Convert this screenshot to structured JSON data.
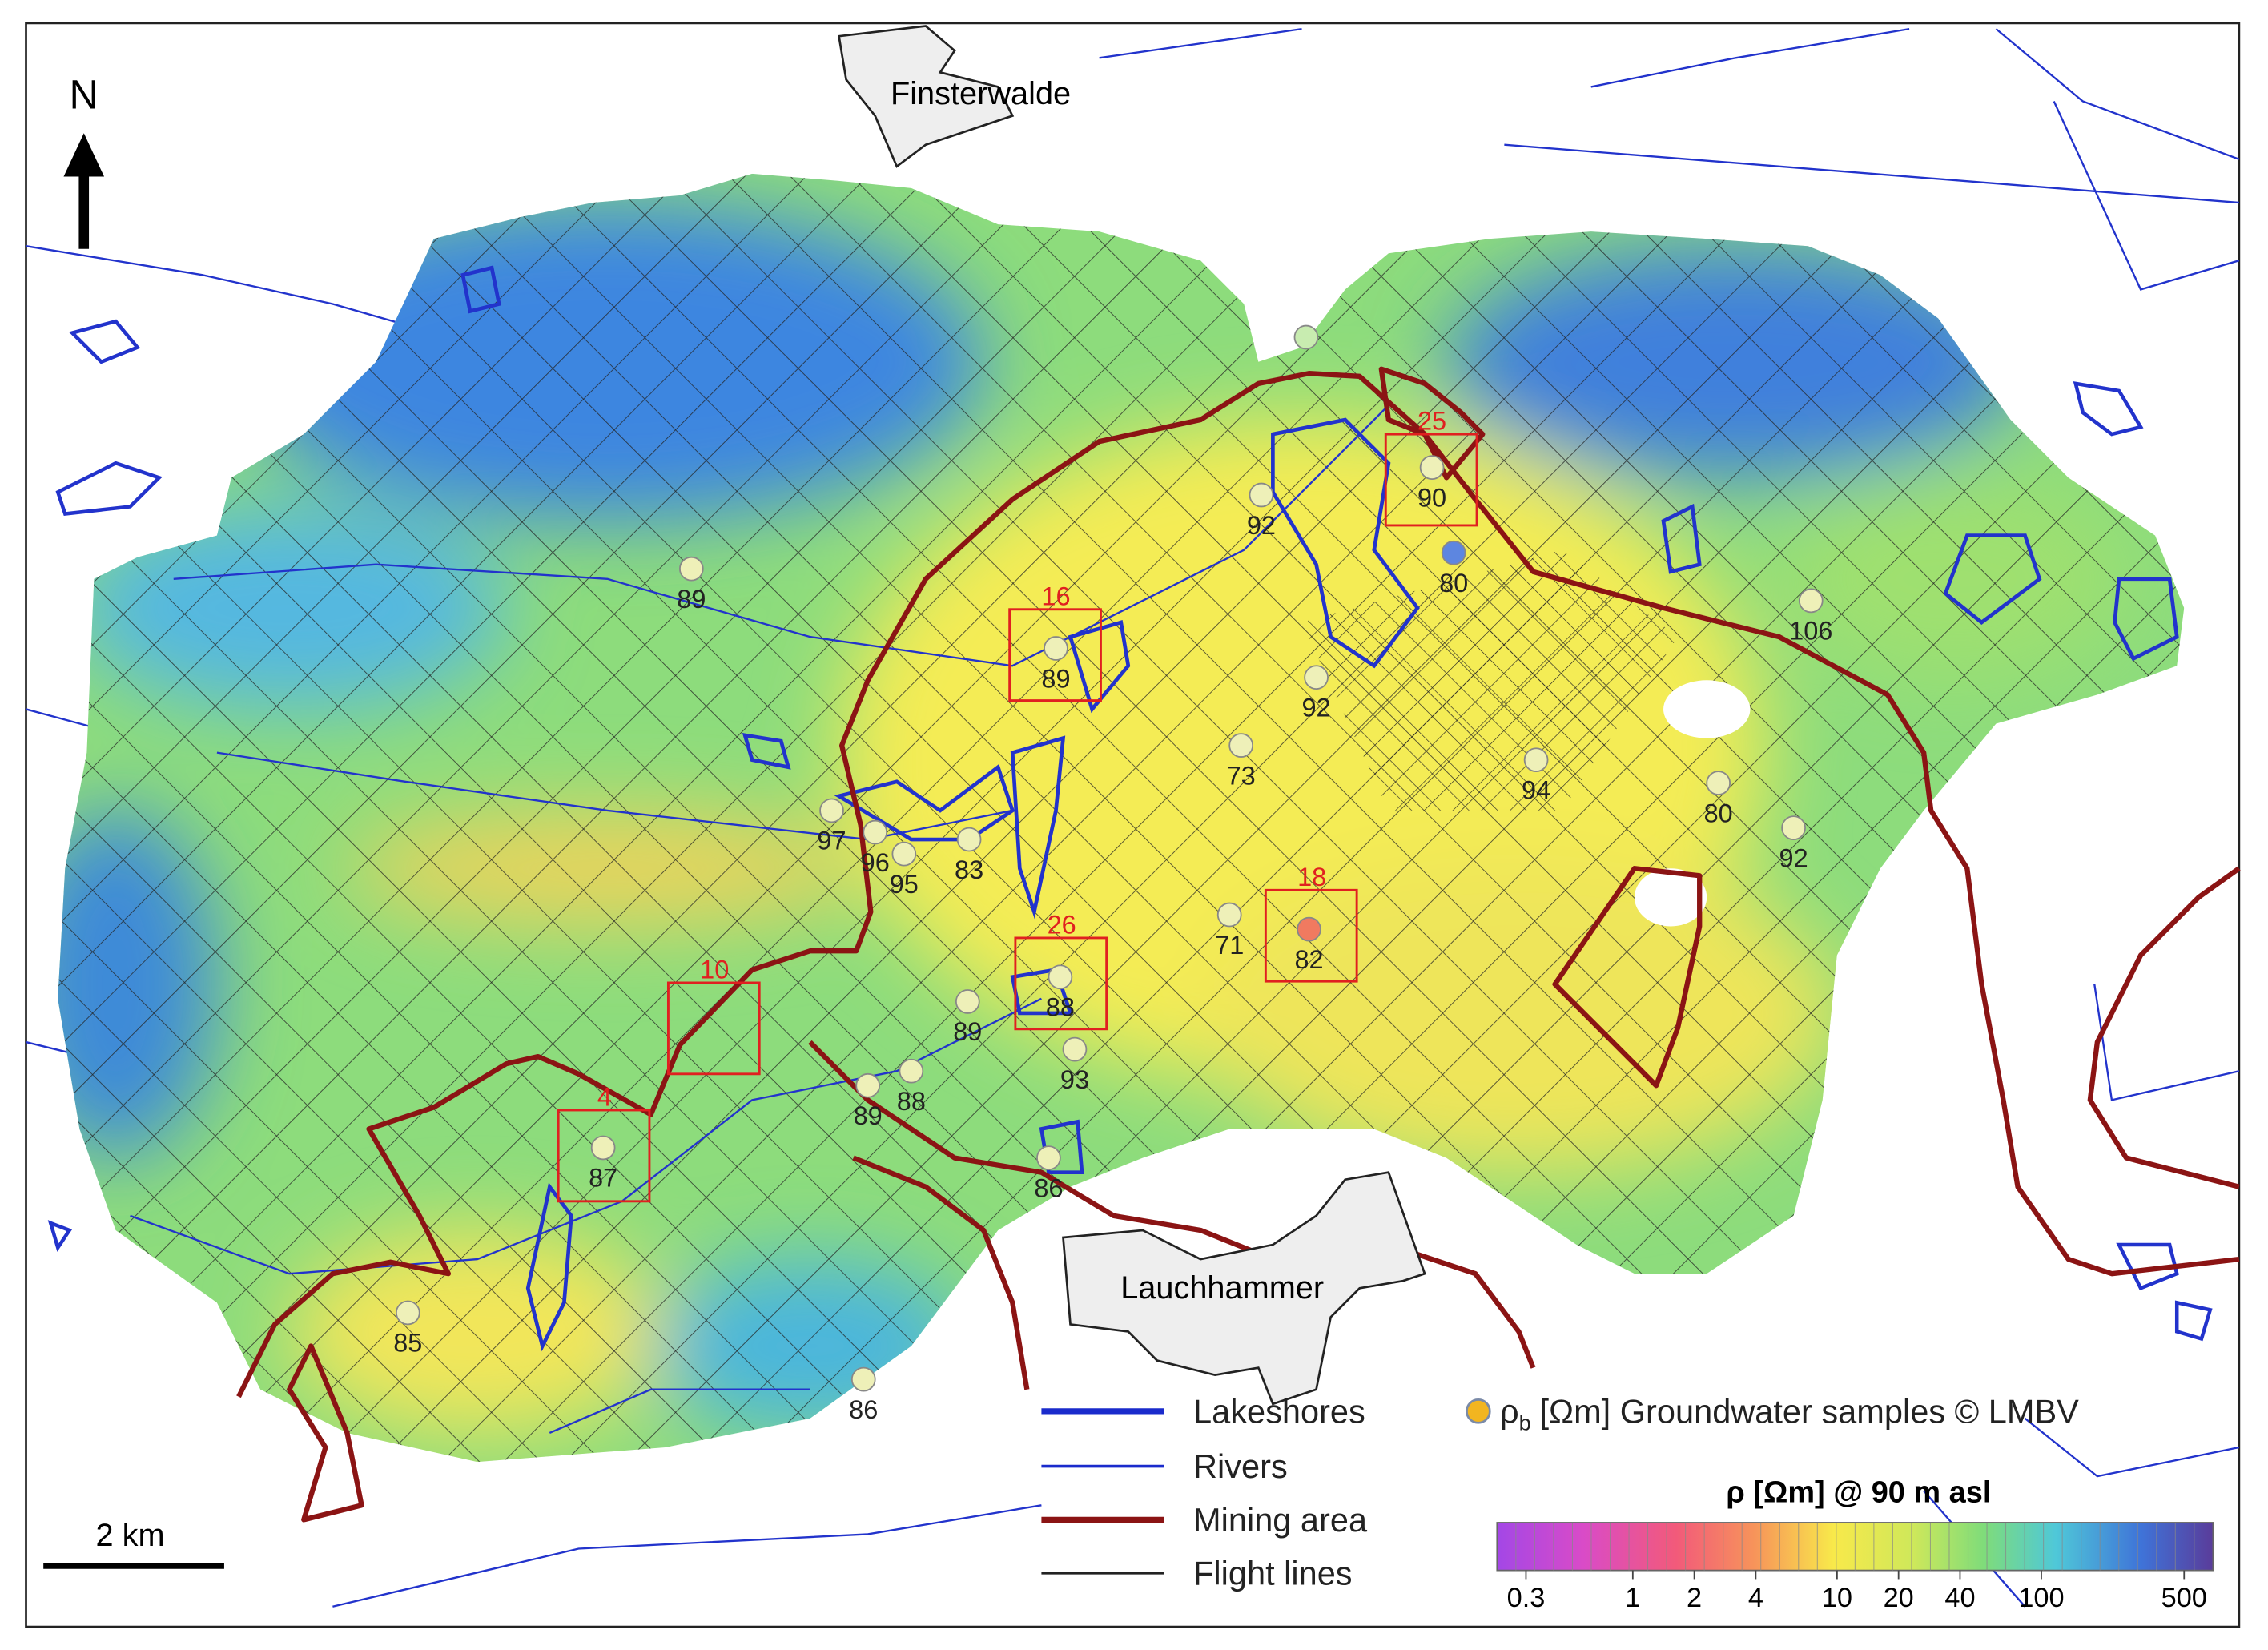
{
  "north_label": "N",
  "towns": [
    {
      "name": "Finsterwalde"
    },
    {
      "name": "Lauchhammer"
    }
  ],
  "sample_values": [
    89,
    92,
    90,
    80,
    106,
    89,
    92,
    73,
    94,
    80,
    92,
    97,
    96,
    95,
    83,
    71,
    82,
    88,
    89,
    93,
    89,
    88,
    87,
    86,
    85,
    86
  ],
  "highlight_boxes": [
    25,
    16,
    18,
    26,
    10,
    4
  ],
  "legend": {
    "lakeshores": "Lakeshores",
    "rivers": "Rivers",
    "mining_area": "Mining area",
    "flight_lines": "Flight lines",
    "samples_symbol": "ρ",
    "samples_subscript": "b",
    "samples_text": "[Ωm]  Groundwater samples © LMBV"
  },
  "scale_bar": "2 km",
  "colorbar": {
    "title": "ρ [Ωm] @ 90 m asl",
    "ticks": [
      0.3,
      1,
      2,
      4,
      10,
      20,
      40,
      100,
      500
    ]
  }
}
